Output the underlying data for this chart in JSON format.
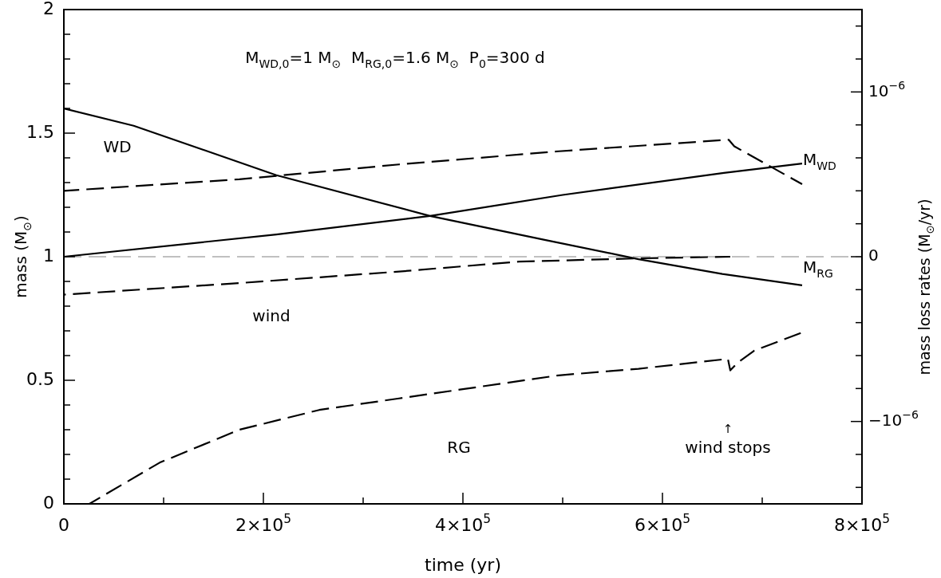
{
  "chart_data": {
    "type": "line",
    "title": "M$_{WD,0}$=1 M$_{⊙}$  M$_{RG,0}$=1.6 M$_{⊙}$  P$_{0}$=300 d",
    "xlabel": "time (yr)",
    "ylabel": "mass (M$_{⊙}$)",
    "y2label": "mass loss rates (M$_{⊙}$/yr)",
    "xlim": [
      0,
      800000
    ],
    "ylim": [
      0,
      2
    ],
    "y2lim": [
      -1.5e-06,
      1.5e-06
    ],
    "xticks": [
      0,
      {
        "value": 100000,
        "label": null
      },
      {
        "value": 200000,
        "label": "2×10$^{5}$"
      },
      {
        "value": 300000,
        "label": null
      },
      {
        "value": 400000,
        "label": "4×10$^{5}$"
      },
      {
        "value": 500000,
        "label": null
      },
      {
        "value": 600000,
        "label": "6×10$^{5}$"
      },
      {
        "value": 700000,
        "label": null
      },
      {
        "value": 800000,
        "label": "8×10$^{5}$"
      }
    ],
    "yticks": [
      0,
      {
        "value": 0.1,
        "label": null
      },
      {
        "value": 0.2,
        "label": null
      },
      {
        "value": 0.3,
        "label": null
      },
      {
        "value": 0.4,
        "label": null
      },
      0.5,
      {
        "value": 0.6,
        "label": null
      },
      {
        "value": 0.7,
        "label": null
      },
      {
        "value": 0.8,
        "label": null
      },
      {
        "value": 0.9,
        "label": null
      },
      1,
      {
        "value": 1.1,
        "label": null
      },
      {
        "value": 1.2,
        "label": null
      },
      {
        "value": 1.3,
        "label": null
      },
      {
        "value": 1.4,
        "label": null
      },
      1.5,
      {
        "value": 1.6,
        "label": null
      },
      {
        "value": 1.7,
        "label": null
      },
      {
        "value": 1.8,
        "label": null
      },
      {
        "value": 1.9,
        "label": null
      },
      2
    ],
    "y2ticks": [
      {
        "value": -1.4e-06,
        "label": null
      },
      {
        "value": -1.2e-06,
        "label": null
      },
      {
        "value": -1e-06,
        "label": "−10$^{−6}$"
      },
      {
        "value": -8e-07,
        "label": null
      },
      {
        "value": -6e-07,
        "label": null
      },
      {
        "value": -4e-07,
        "label": null
      },
      {
        "value": -2e-07,
        "label": null
      },
      0,
      {
        "value": 2e-07,
        "label": null
      },
      {
        "value": 4e-07,
        "label": null
      },
      {
        "value": 6e-07,
        "label": null
      },
      {
        "value": 8e-07,
        "label": null
      },
      {
        "value": 1e-06,
        "label": "10$^{−6}$"
      },
      {
        "value": 1.2e-06,
        "label": null
      },
      {
        "value": 1.4e-06,
        "label": null
      }
    ],
    "series": [
      {
        "color": "#000000",
        "line_style": "solid",
        "x": [
          0,
          70000,
          213000,
          367000,
          480000,
          576000,
          660000,
          740000
        ],
        "values": [
          1.6,
          1.53,
          1.33,
          1.165,
          1.07,
          0.99,
          0.93,
          0.884
        ]
      },
      {
        "color": "#000000",
        "line_style": "solid",
        "x": [
          0,
          213000,
          367000,
          500000,
          661600,
          740000
        ],
        "values": [
          1.0,
          1.09,
          1.165,
          1.25,
          1.339,
          1.377
        ]
      },
      {
        "color": "#000000",
        "line_style": "dashed",
        "axis": "y2",
        "x": [
          0,
          176000,
          336000,
          496000,
          666400,
          672000,
          740000
        ],
        "values": [
          4e-07,
          4.7e-07,
          5.6e-07,
          6.4e-07,
          7.1e-07,
          6.7e-07,
          4.4e-07
        ]
      },
      {
        "color": "#000000",
        "line_style": "dashed",
        "axis": "y2",
        "x": [
          0,
          176000,
          336000,
          456000,
          576000,
          668000
        ],
        "values": [
          -2.3e-07,
          -1.6e-07,
          -9e-08,
          -3e-08,
          -1e-08,
          0
        ]
      },
      {
        "color": "#000000",
        "line_style": "dashed",
        "axis": "y2",
        "x": [
          25600,
          96000,
          176000,
          256000,
          336000,
          416000,
          496000,
          576000,
          665600,
          668000,
          676000,
          692000,
          740000
        ],
        "values": [
          -1.5e-06,
          -1.25e-06,
          -1.05e-06,
          -9.3e-07,
          -8.6e-07,
          -7.9e-07,
          -7.2e-07,
          -6.8e-07,
          -6.2e-07,
          -6.9e-07,
          -6.4e-07,
          -5.7e-07,
          -4.6e-07
        ]
      }
    ],
    "ref_lines": [
      {
        "axis": "y2",
        "value": 0,
        "color": "#808080",
        "line_style": "dashed"
      }
    ],
    "annotations": [
      "WD",
      "wind",
      "RG",
      "↑",
      "wind stops",
      "M$_{WD}$",
      "M$_{RG}$"
    ],
    "legend": false,
    "grid": false,
    "marker": "none"
  }
}
